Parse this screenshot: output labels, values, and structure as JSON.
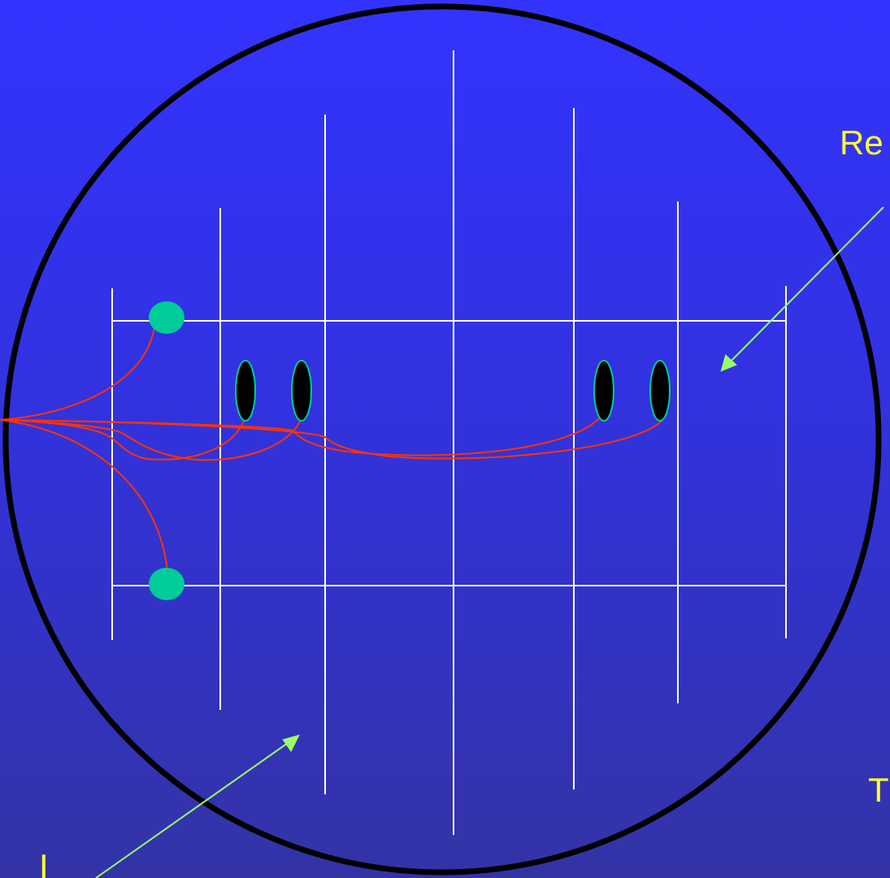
{
  "labels": {
    "top_right": "Re",
    "bottom_right": "T",
    "bottom_left": "I"
  },
  "colors": {
    "background_top": "#3333ff",
    "background_bottom": "#3333a6",
    "circle": "#000000",
    "grid": "#ffffff",
    "wire": "#ff3300",
    "dot": "#00cc99",
    "electrode": "#000000",
    "electrode_outline": "#00cc99",
    "arrow": "#99ff66",
    "label": "#ffff33"
  },
  "icons": {
    "dot": "circle-dot",
    "electrode": "ellipse-electrode",
    "arrow": "arrow-pointer"
  }
}
